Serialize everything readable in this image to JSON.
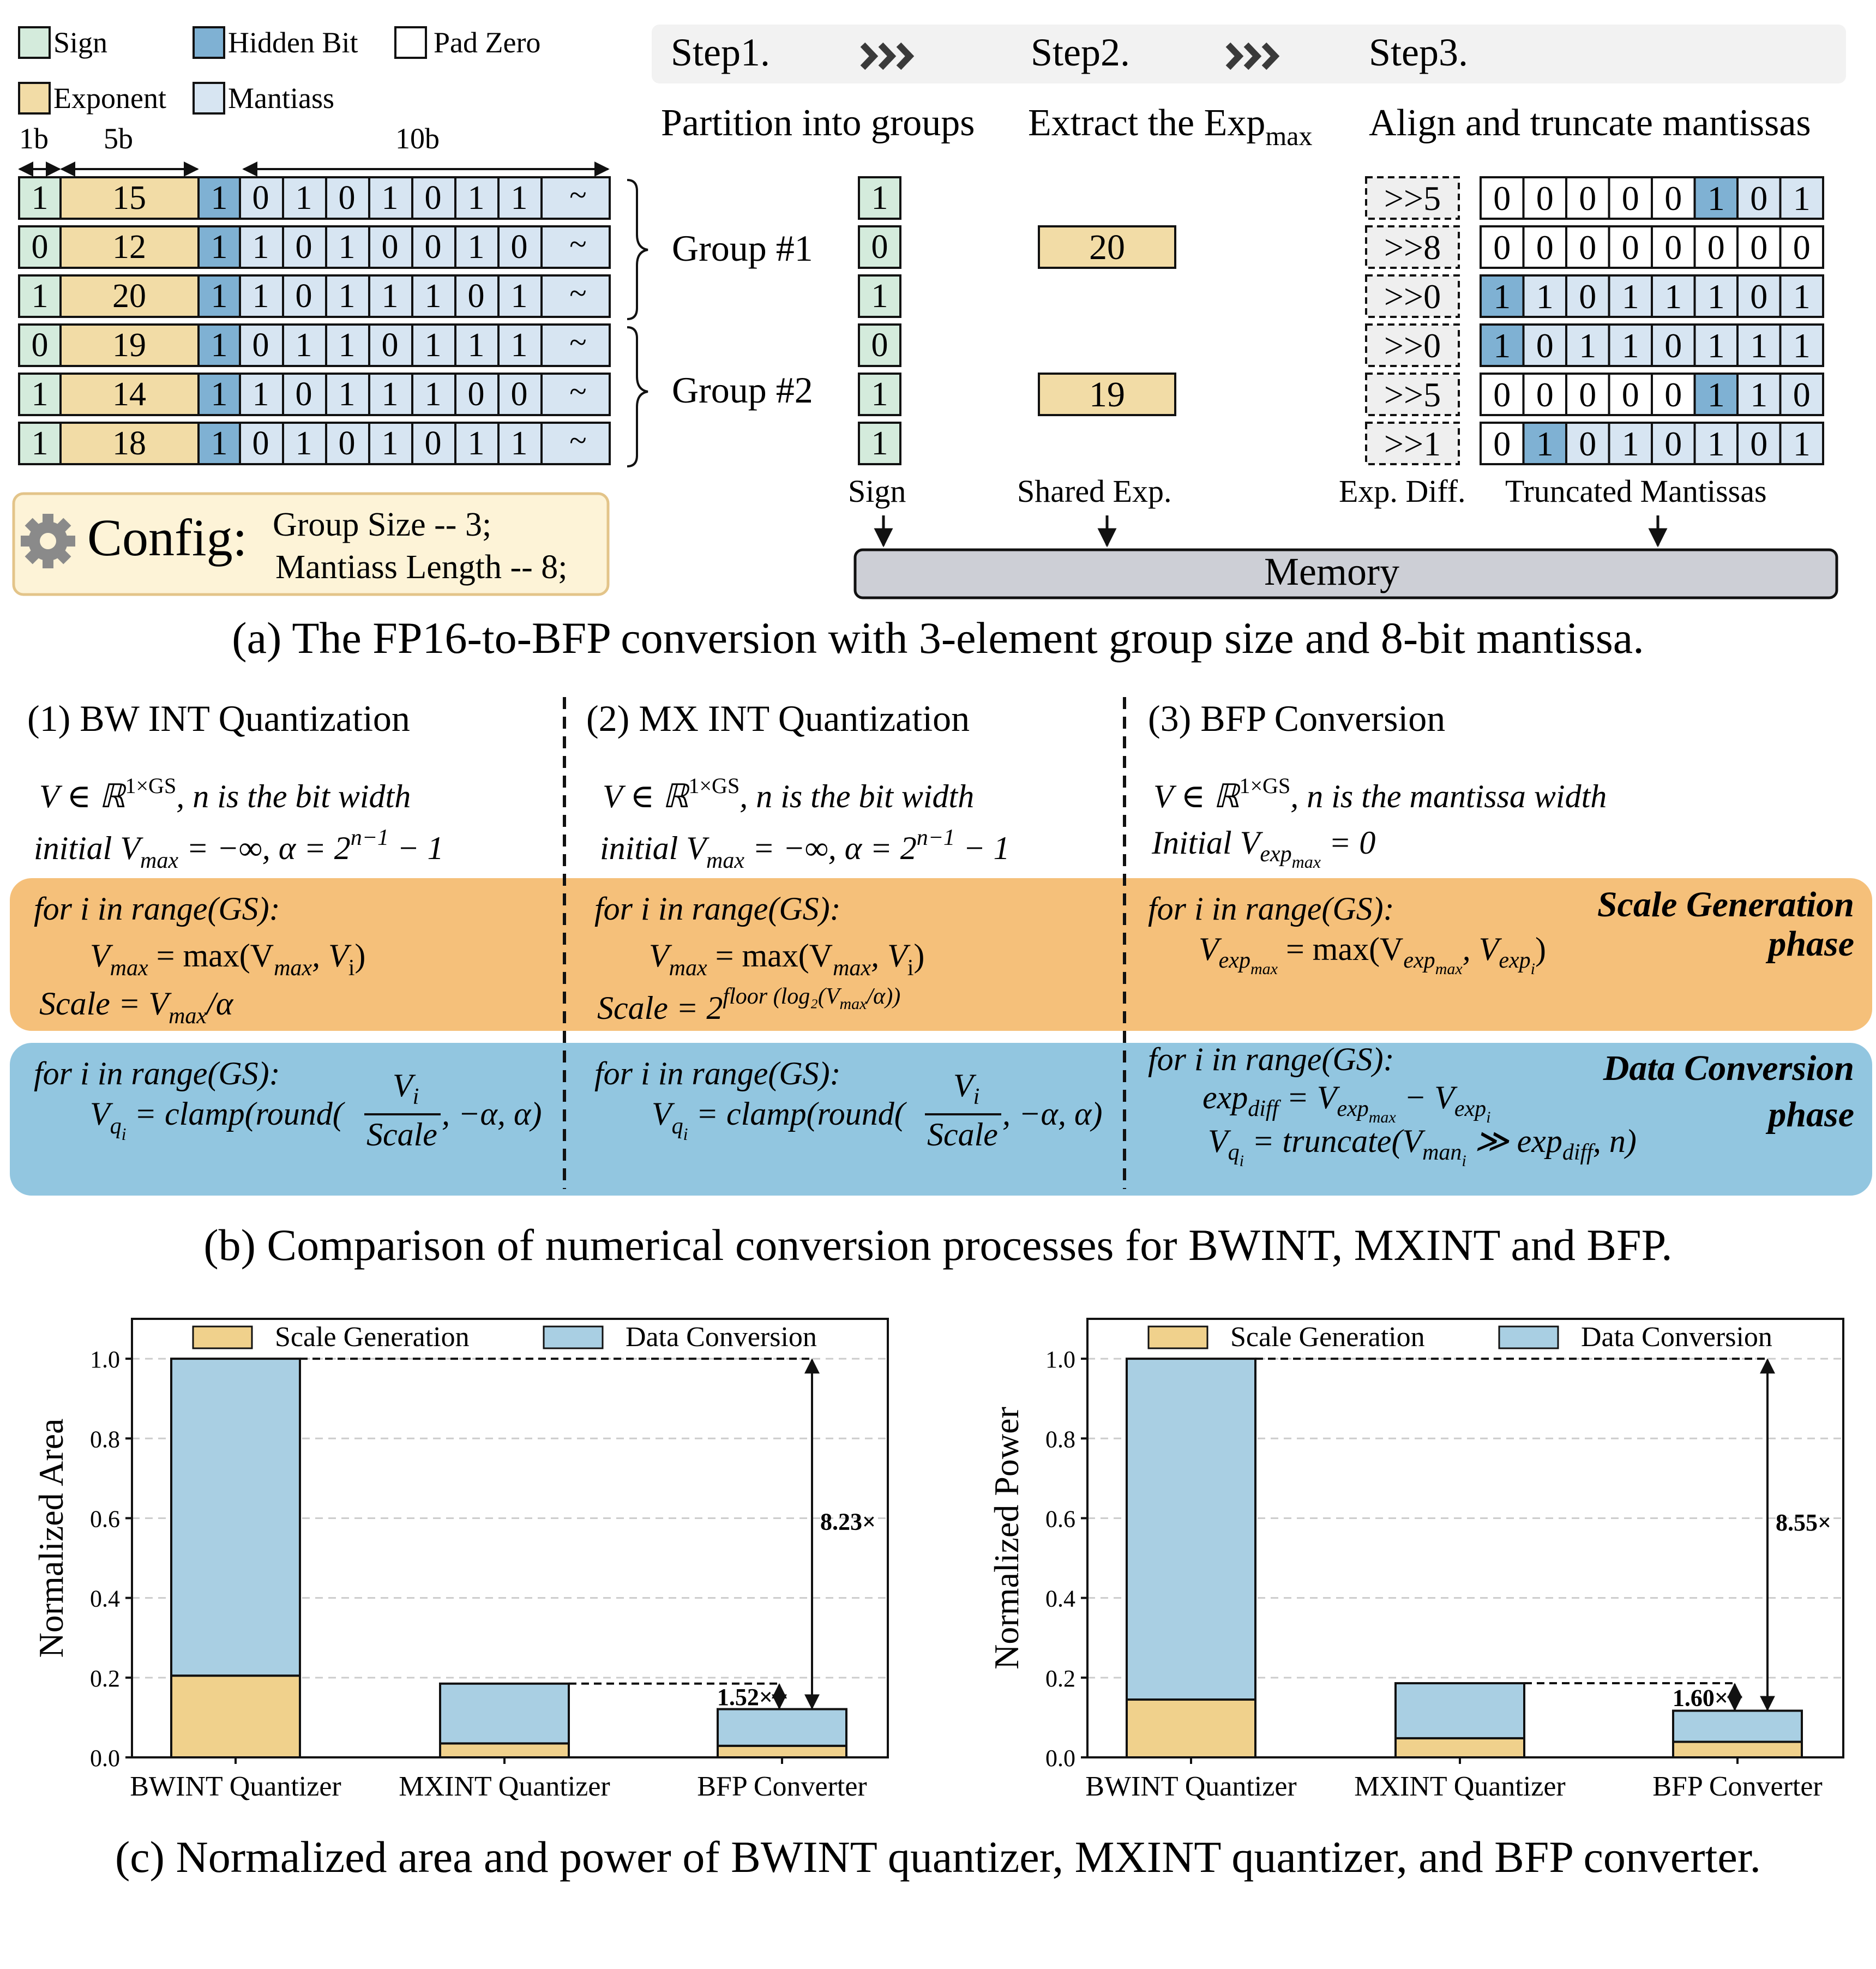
{
  "panel_a": {
    "legend": {
      "sign": "Sign",
      "hidden_bit": "Hidden Bit",
      "pad_zero": "Pad Zero",
      "exponent": "Exponent",
      "mantissa": "Mantiass"
    },
    "widths": {
      "sign": "1b",
      "exponent": "5b",
      "mantissa": "10b"
    },
    "tilde": "~",
    "rows": [
      {
        "sign": "1",
        "exp": "15",
        "hidden": "1",
        "bits": [
          "0",
          "1",
          "0",
          "1",
          "0",
          "1",
          "1"
        ]
      },
      {
        "sign": "0",
        "exp": "12",
        "hidden": "1",
        "bits": [
          "1",
          "0",
          "1",
          "0",
          "0",
          "1",
          "0"
        ]
      },
      {
        "sign": "1",
        "exp": "20",
        "hidden": "1",
        "bits": [
          "1",
          "0",
          "1",
          "1",
          "1",
          "0",
          "1"
        ]
      },
      {
        "sign": "0",
        "exp": "19",
        "hidden": "1",
        "bits": [
          "0",
          "1",
          "1",
          "0",
          "1",
          "1",
          "1"
        ]
      },
      {
        "sign": "1",
        "exp": "14",
        "hidden": "1",
        "bits": [
          "1",
          "0",
          "1",
          "1",
          "1",
          "0",
          "0"
        ]
      },
      {
        "sign": "1",
        "exp": "18",
        "hidden": "1",
        "bits": [
          "0",
          "1",
          "0",
          "1",
          "0",
          "1",
          "1"
        ]
      }
    ],
    "groups": [
      "Group #1",
      "Group #2"
    ],
    "config": {
      "label": "Config:",
      "line1": "Group Size -- 3;",
      "line2": "Mantiass Length -- 8;"
    },
    "steps": [
      "Step1.",
      "Step2.",
      "Step3."
    ],
    "chevrons": "›››",
    "step_desc": {
      "s1": "Partition into groups",
      "s2": "Extract the Exp",
      "s2_sub": "max",
      "s3": "Align and truncate mantissas"
    },
    "signs_out": [
      "1",
      "0",
      "1",
      "0",
      "1",
      "1"
    ],
    "shared_exp": [
      "20",
      "19"
    ],
    "exp_diff": [
      ">>5",
      ">>8",
      ">>0",
      ">>0",
      ">>5",
      ">>1"
    ],
    "truncated": [
      {
        "bits": [
          "0",
          "0",
          "0",
          "0",
          "0",
          "1",
          "0",
          "1"
        ],
        "hidden_idx": 5
      },
      {
        "bits": [
          "0",
          "0",
          "0",
          "0",
          "0",
          "0",
          "0",
          "0"
        ],
        "hidden_idx": -1
      },
      {
        "bits": [
          "1",
          "1",
          "0",
          "1",
          "1",
          "1",
          "0",
          "1"
        ],
        "hidden_idx": 0
      },
      {
        "bits": [
          "1",
          "0",
          "1",
          "1",
          "0",
          "1",
          "1",
          "1"
        ],
        "hidden_idx": 0
      },
      {
        "bits": [
          "0",
          "0",
          "0",
          "0",
          "0",
          "1",
          "1",
          "0"
        ],
        "hidden_idx": 5
      },
      {
        "bits": [
          "0",
          "1",
          "0",
          "1",
          "0",
          "1",
          "0",
          "1"
        ],
        "hidden_idx": 1
      }
    ],
    "out_labels": {
      "sign": "Sign",
      "shared": "Shared Exp.",
      "diff": "Exp. Diff.",
      "trunc": "Truncated Mantissas"
    },
    "memory": "Memory",
    "caption": "(a) The FP16-to-BFP conversion with 3-element group size and 8-bit mantissa."
  },
  "panel_b": {
    "titles": [
      "(1) BW INT Quantization",
      "(2) MX INT Quantization",
      "(3) BFP Conversion"
    ],
    "phase_scale": [
      "Scale Generation",
      "phase"
    ],
    "phase_data": [
      "Data Conversion",
      "phase"
    ],
    "for_loop": "for i in range(GS):",
    "col1": {
      "init1": "V ∈ ℝ",
      "init1_sup": "1×GS",
      "init1_tail": ", n is the bit width",
      "init2": "initial V",
      "init2_sub": "max",
      "init2_tail": " = −∞, α = 2",
      "init2_sup": "n−1",
      "init2_end": " − 1",
      "sg1": "V",
      "sg1_sub": "max",
      "sg1_mid": " = max(V",
      "sg1_sub2": "max",
      "sg1_end": ", V",
      "sg1_sub3": "i",
      "sg1_close": ")",
      "sg2": "Scale = V",
      "sg2_sub": "max",
      "sg2_end": "/α",
      "dc1": "V",
      "dc1_sub": "q",
      "dc1_subsub": "i",
      "dc1_mid": " = clamp(round(",
      "dc1_num": "V",
      "dc1_num_sub": "i",
      "dc1_den": "Scale",
      "dc1_end": ", −α, α)"
    },
    "col2": {
      "init1": "V ∈ ℝ",
      "init1_sup": "1×GS",
      "init1_tail": ", n is the bit width",
      "init2": "initial V",
      "init2_sub": "max",
      "init2_tail": " = −∞, α = 2",
      "init2_sup": "n−1",
      "init2_end": " − 1",
      "sg1": "V",
      "sg1_sub": "max",
      "sg1_mid": " = max(V",
      "sg1_sub2": "max",
      "sg1_end": ", V",
      "sg1_sub3": "i",
      "sg1_close": ")",
      "sg2": "Scale = 2",
      "sg2_sup": "floor (log₂(V",
      "sg2_sup_sub": "max",
      "sg2_sup_end": "/α))",
      "dc1": "V",
      "dc1_sub": "q",
      "dc1_subsub": "i",
      "dc1_mid": " = clamp(round(",
      "dc1_num": "V",
      "dc1_num_sub": "i",
      "dc1_den": "Scale",
      "dc1_end": ", −α, α)"
    },
    "col3": {
      "init1": "V ∈ ℝ",
      "init1_sup": "1×GS",
      "init1_tail": ", n is the mantissa width",
      "init2": "Initial V",
      "init2_sub": "exp",
      "init2_subsub": "max",
      "init2_end": " = 0",
      "sg1": "V",
      "sg1_sub": "exp",
      "sg1_subsub": "max",
      "sg1_mid": " = max(V",
      "sg1_sub2": "exp",
      "sg1_subsub2": "max",
      "sg1_end": ", V",
      "sg1_sub3": "exp",
      "sg1_subsub3": "i",
      "sg1_close": ")",
      "dc1": "exp",
      "dc1_sub": "diff",
      "dc1_mid": " = V",
      "dc1_sub2": "exp",
      "dc1_subsub2": "max",
      "dc1_end": " − V",
      "dc1_sub3": "exp",
      "dc1_subsub3": "i",
      "dc2": "V",
      "dc2_sub": "q",
      "dc2_subsub": "i",
      "dc2_mid": " = truncate(V",
      "dc2_sub2": "man",
      "dc2_subsub2": "i",
      "dc2_end": " ≫ exp",
      "dc2_sub3": "diff",
      "dc2_close": ", n)"
    },
    "caption": "(b) Comparison of numerical conversion processes for BWINT, MXINT and BFP."
  },
  "chart_data": [
    {
      "type": "bar",
      "stacked": true,
      "categories": [
        "BWINT Quantizer",
        "MXINT Quantizer",
        "BFP Converter"
      ],
      "series": [
        {
          "name": "Scale Generation",
          "values": [
            0.205,
            0.035,
            0.029
          ]
        },
        {
          "name": "Data Conversion",
          "values": [
            0.795,
            0.15,
            0.092
          ]
        }
      ],
      "ylabel": "Normalized Area",
      "ylim": [
        0,
        1.1
      ],
      "yticks": [
        "0.0",
        "0.2",
        "0.4",
        "0.6",
        "0.8",
        "1.0"
      ],
      "grid": true,
      "legend": "top",
      "annotations": [
        "8.23×",
        "1.52×"
      ]
    },
    {
      "type": "bar",
      "stacked": true,
      "categories": [
        "BWINT Quantizer",
        "MXINT Quantizer",
        "BFP Converter"
      ],
      "series": [
        {
          "name": "Scale Generation",
          "values": [
            0.145,
            0.048,
            0.039
          ]
        },
        {
          "name": "Data Conversion",
          "values": [
            0.855,
            0.138,
            0.078
          ]
        }
      ],
      "ylabel": "Normalized Power",
      "ylim": [
        0,
        1.1
      ],
      "yticks": [
        "0.0",
        "0.2",
        "0.4",
        "0.6",
        "0.8",
        "1.0"
      ],
      "grid": true,
      "legend": "top",
      "annotations": [
        "8.55×",
        "1.60×"
      ]
    }
  ],
  "panel_c_caption": "(c) Normalized area and power of BWINT quantizer, MXINT quantizer, and BFP converter.",
  "colors": {
    "sign": "#d4ebdc",
    "exponent": "#f2dca6",
    "hidden": "#7fb1d3",
    "mantissa": "#d7e5f2",
    "scale_phase": "#f5c07a",
    "data_phase": "#92c6e0",
    "memory": "#cdcfd6",
    "config_bg": "#fdf3d7",
    "config_border": "#e3c489",
    "bar_scale": "#f0d18c",
    "bar_data": "#a9cfe3"
  }
}
